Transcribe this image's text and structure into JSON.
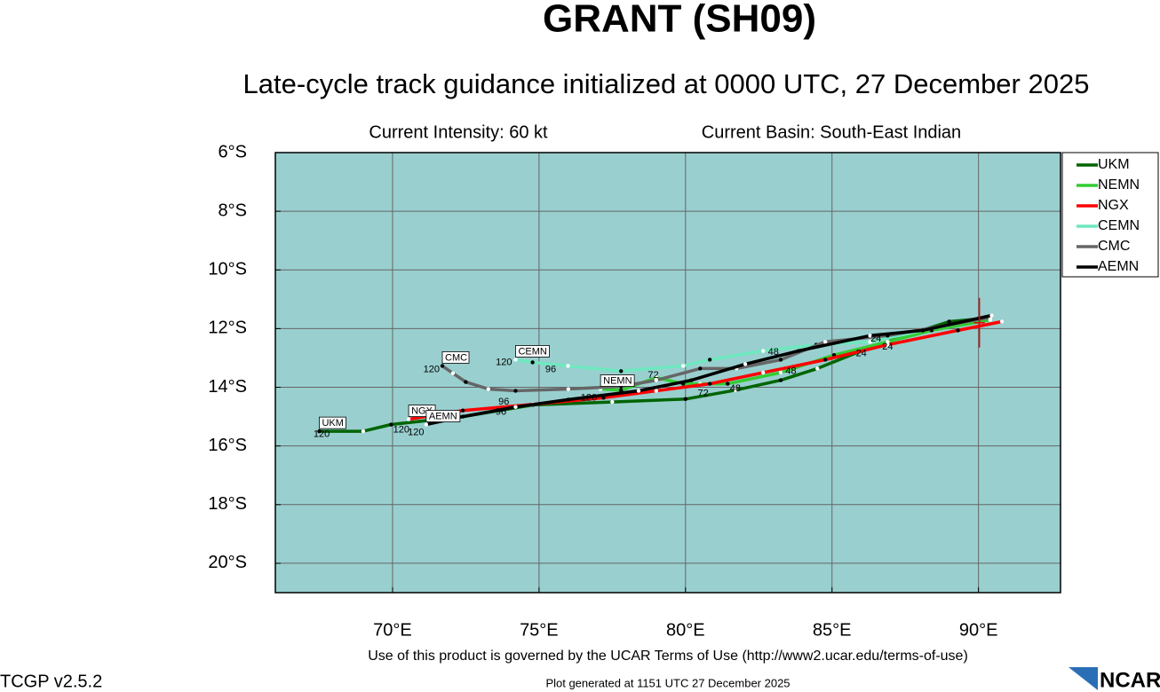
{
  "chart_data": {
    "type": "line",
    "title": "GRANT (SH09)",
    "subtitle": "Late-cycle track guidance initialized at 0000 UTC, 27 December 2025",
    "intensity": "Current Intensity: 60 kt",
    "basin": "Current Basin: South-East Indian",
    "footer": "Use of this product is governed by the UCAR Terms of Use (http://www2.ucar.edu/terms-of-use)",
    "version": "TCGP v2.5.2",
    "generated": "Plot generated at 1151 UTC   27 December 2025",
    "logo": "NCAR",
    "background": "#99cfcf",
    "grid": true,
    "legend": "right",
    "xlim": [
      66,
      92.8
    ],
    "ylim": [
      -21,
      -6
    ],
    "xticks": [
      {
        "value": 70,
        "label": "70°E"
      },
      {
        "value": 75,
        "label": "75°E"
      },
      {
        "value": 80,
        "label": "80°E"
      },
      {
        "value": 85,
        "label": "85°E"
      },
      {
        "value": 90,
        "label": "90°E"
      }
    ],
    "yticks": [
      {
        "value": -6,
        "label": "6°S"
      },
      {
        "value": -8,
        "label": "8°S"
      },
      {
        "value": -10,
        "label": "10°S"
      },
      {
        "value": -12,
        "label": "12°S"
      },
      {
        "value": -14,
        "label": "14°S"
      },
      {
        "value": -16,
        "label": "16°S"
      },
      {
        "value": -18,
        "label": "18°S"
      },
      {
        "value": -20,
        "label": "20°S"
      }
    ],
    "current_position": {
      "x": 90.03,
      "y": -11.8
    },
    "series": [
      {
        "name": "UKM",
        "color": "#006400",
        "x": [
          90.36,
          89.0,
          87.5,
          86.0,
          84.5,
          83.25,
          81.7,
          80.0,
          77.5,
          74.8,
          72.4,
          69.95,
          69.0,
          67.5
        ],
        "y": [
          -11.64,
          -11.76,
          -12.24,
          -12.76,
          -13.36,
          -13.76,
          -14.1,
          -14.4,
          -14.5,
          -14.6,
          -15.0,
          -15.27,
          -15.5,
          -15.5
        ],
        "hour_labels": [
          {
            "text": "24",
            "x": 86.9,
            "y": -12.62
          },
          {
            "text": "48",
            "x": 81.7,
            "y": -14.05
          },
          {
            "text": "96",
            "x": 73.7,
            "y": -14.85
          },
          {
            "text": "120",
            "x": 67.58,
            "y": -15.6
          }
        ]
      },
      {
        "name": "NEMN",
        "color": "#33cc33",
        "x": [
          90.4,
          88.4,
          86.9,
          85.07,
          83.25,
          81.44,
          80.5,
          79.92,
          79.0,
          77.8,
          77.1
        ],
        "y": [
          -11.7,
          -12.06,
          -12.45,
          -12.9,
          -13.5,
          -13.88,
          -13.88,
          -13.88,
          -13.67,
          -14.1,
          -14.06
        ],
        "hour_labels": [
          {
            "text": "72",
            "x": 80.6,
            "y": -14.22
          },
          {
            "text": "120",
            "x": 76.7,
            "y": -14.36
          }
        ]
      },
      {
        "name": "NGX",
        "color": "#ff0000",
        "x": [
          90.8,
          89.3,
          86.9,
          84.77,
          82.65,
          80.83,
          79.0,
          77.2,
          74.8,
          72.4,
          70.55
        ],
        "y": [
          -11.76,
          -12.06,
          -12.55,
          -13.06,
          -13.5,
          -13.88,
          -14.12,
          -14.36,
          -14.58,
          -14.79,
          -15.09
        ],
        "hour_labels": [
          {
            "text": "24",
            "x": 86.0,
            "y": -12.85
          },
          {
            "text": "48",
            "x": 83.6,
            "y": -13.45
          },
          {
            "text": "96",
            "x": 73.8,
            "y": -14.5
          },
          {
            "text": "120",
            "x": 70.3,
            "y": -15.45
          }
        ]
      },
      {
        "name": "CEMN",
        "color": "#6fe8bf",
        "x": [
          90.4,
          88.1,
          86.3,
          84.46,
          82.65,
          80.83,
          79.92,
          77.8,
          75.99,
          74.78,
          74.2
        ],
        "y": [
          -11.58,
          -12.06,
          -12.45,
          -12.55,
          -12.76,
          -13.06,
          -13.27,
          -13.45,
          -13.27,
          -13.15,
          -13.06
        ],
        "hour_labels": [
          {
            "text": "48",
            "x": 83.0,
            "y": -12.8
          },
          {
            "text": "96",
            "x": 75.4,
            "y": -13.4
          },
          {
            "text": "120",
            "x": 73.8,
            "y": -13.15
          }
        ]
      },
      {
        "name": "CMC",
        "color": "#666666",
        "x": [
          90.4,
          86.9,
          84.77,
          83.25,
          81.74,
          80.5,
          79.0,
          77.8,
          76.0,
          74.2,
          73.27,
          72.5,
          72.06,
          71.7
        ],
        "y": [
          -11.62,
          -12.24,
          -12.45,
          -13.06,
          -13.36,
          -13.36,
          -13.76,
          -13.97,
          -14.06,
          -14.12,
          -14.06,
          -13.82,
          -13.52,
          -13.27
        ],
        "hour_labels": [
          {
            "text": "24",
            "x": 86.5,
            "y": -12.35
          },
          {
            "text": "120",
            "x": 71.33,
            "y": -13.4
          }
        ]
      },
      {
        "name": "AEMN",
        "color": "#000000",
        "x": [
          90.45,
          88.1,
          86.3,
          83.86,
          82.04,
          80.2,
          78.4,
          76.0,
          74.2,
          72.4,
          71.15
        ],
        "y": [
          -11.55,
          -12.06,
          -12.24,
          -12.76,
          -13.21,
          -13.76,
          -14.12,
          -14.42,
          -14.67,
          -15.0,
          -15.27
        ],
        "hour_labels": [
          {
            "text": "72",
            "x": 78.9,
            "y": -13.6
          },
          {
            "text": "96",
            "x": 72.0,
            "y": -15.0
          },
          {
            "text": "120",
            "x": 70.8,
            "y": -15.55
          }
        ]
      }
    ]
  }
}
